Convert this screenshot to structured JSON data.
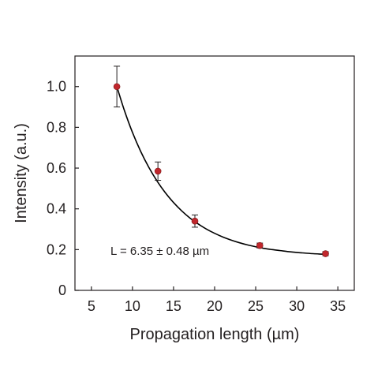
{
  "chart_data": {
    "type": "scatter",
    "xlabel": "Propagation length (µm)",
    "ylabel": "Intensity (a.u.)",
    "xlim": [
      3,
      37
    ],
    "ylim": [
      0,
      1.15
    ],
    "xticks": [
      5,
      10,
      15,
      20,
      25,
      30,
      35
    ],
    "xtick_labels": [
      "5",
      "10",
      "15",
      "20",
      "25",
      "30",
      "35"
    ],
    "yticks": [
      0,
      0.2,
      0.4,
      0.6,
      0.8,
      1.0
    ],
    "ytick_labels": [
      "0",
      "0.2",
      "0.4",
      "0.6",
      "0.8",
      "1.0"
    ],
    "grid": false,
    "series": [
      {
        "x": [
          8.1,
          13.1,
          17.6,
          25.5,
          33.5
        ],
        "y": [
          1.0,
          0.585,
          0.34,
          0.22,
          0.18
        ],
        "error": [
          0.1,
          0.045,
          0.03,
          0.012,
          0.01
        ],
        "color": "#c1272d"
      }
    ],
    "fit": {
      "x": [
        8.1,
        9,
        10,
        11,
        12,
        13,
        14,
        15,
        16,
        17,
        18,
        19,
        20,
        21,
        22,
        23,
        24,
        25,
        26,
        27,
        28,
        29,
        30,
        31,
        32,
        33,
        33.5
      ],
      "y": [
        1.0,
        0.885,
        0.775,
        0.682,
        0.603,
        0.536,
        0.479,
        0.431,
        0.39,
        0.355,
        0.326,
        0.301,
        0.28,
        0.262,
        0.247,
        0.234,
        0.223,
        0.214,
        0.206,
        0.2,
        0.195,
        0.19,
        0.186,
        0.183,
        0.18,
        0.178,
        0.177
      ],
      "color": "#000000"
    },
    "annotation": "L = 6.35 ± 0.48 µm"
  }
}
